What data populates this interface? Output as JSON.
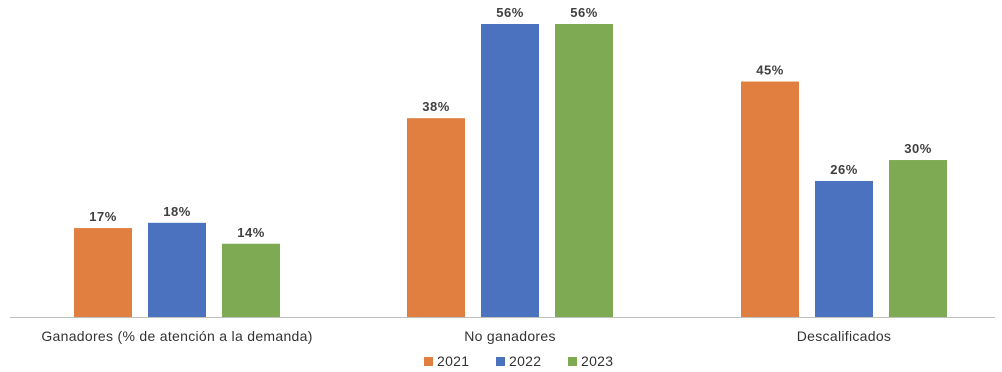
{
  "chart_data": {
    "type": "bar",
    "categories": [
      "Ganadores (% de atención a la demanda)",
      "No ganadores",
      "Descalificados"
    ],
    "series": [
      {
        "name": "2021",
        "color": "#E07F3F",
        "values": [
          17,
          38,
          45
        ],
        "labels": [
          "17%",
          "38%",
          "45%"
        ]
      },
      {
        "name": "2022",
        "color": "#4A72BE",
        "values": [
          18,
          56,
          26
        ],
        "labels": [
          "18%",
          "56%",
          "26%"
        ]
      },
      {
        "name": "2023",
        "color": "#7DAA53",
        "values": [
          14,
          56,
          30
        ],
        "labels": [
          "14%",
          "56%",
          "30%"
        ]
      }
    ],
    "ylim": [
      0,
      56
    ],
    "grid": false,
    "legend": "bottom-center",
    "axis_color": "#BFBFBF"
  }
}
